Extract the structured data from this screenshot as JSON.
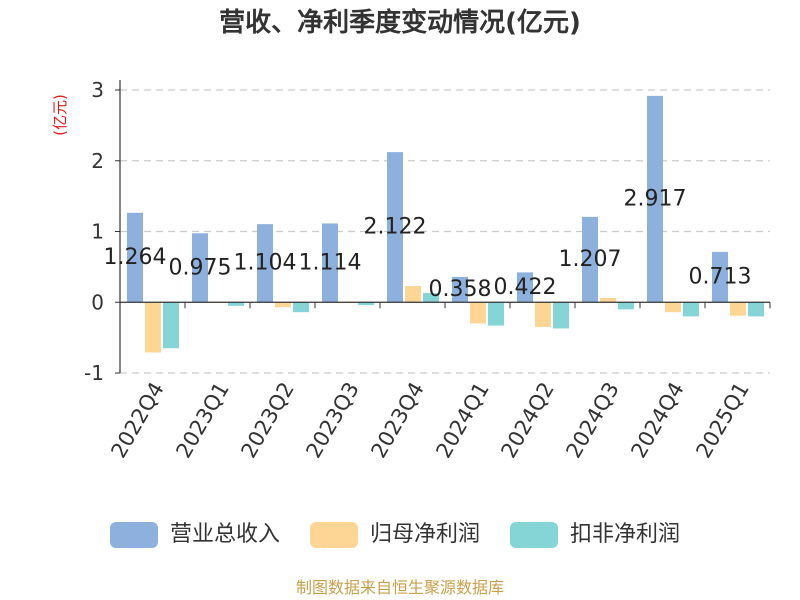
{
  "chart_data": {
    "type": "bar",
    "title": "营收、净利季度变动情况(亿元)",
    "xlabel": "",
    "ylabel": "(亿元)",
    "categories": [
      "2022Q4",
      "2023Q1",
      "2023Q2",
      "2023Q3",
      "2023Q4",
      "2024Q1",
      "2024Q2",
      "2024Q3",
      "2024Q4",
      "2025Q1"
    ],
    "ylim": [
      -1,
      3
    ],
    "yticks": [
      3,
      2,
      1,
      0,
      -1
    ],
    "grid": true,
    "legend_position": "bottom",
    "series": [
      {
        "name": "营业总收入",
        "color": "#8eb0dd",
        "data_labels": true,
        "values": [
          1.264,
          0.975,
          1.104,
          1.114,
          2.122,
          0.358,
          0.422,
          1.207,
          2.917,
          0.713
        ]
      },
      {
        "name": "归母净利润",
        "color": "#fdd595",
        "data_labels": false,
        "values": [
          -0.71,
          -0.01,
          -0.07,
          -0.01,
          0.23,
          -0.3,
          -0.35,
          0.06,
          -0.14,
          -0.19
        ]
      },
      {
        "name": "扣非净利润",
        "color": "#85d4d6",
        "data_labels": false,
        "values": [
          -0.65,
          -0.05,
          -0.14,
          -0.04,
          0.13,
          -0.33,
          -0.37,
          -0.1,
          -0.2,
          -0.2
        ]
      }
    ]
  },
  "source_note": "制图数据来自恒生聚源数据库",
  "colors": {
    "title": "#333333",
    "ylabel": "#e0191b",
    "source_note": "#c9a04a",
    "axis": "#333333",
    "grid": "#cccccc"
  }
}
